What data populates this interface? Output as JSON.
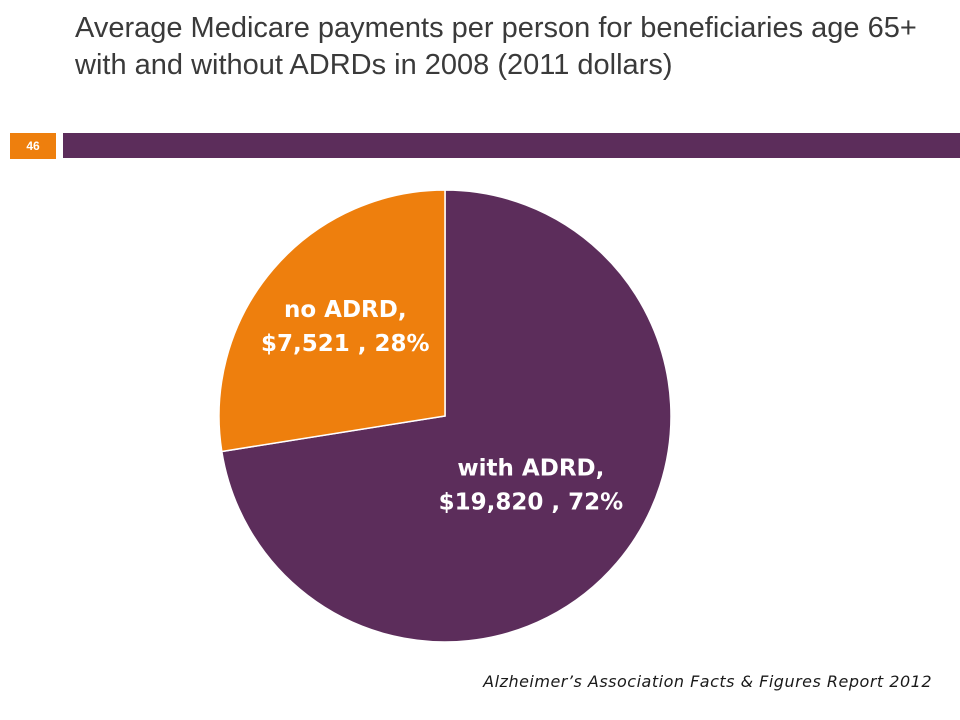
{
  "slide": {
    "title": "Average Medicare payments per person for beneficiaries age 65+ with and without ADRDs in 2008 (2011 dollars)",
    "page_number": "46",
    "source": "Alzheimer’s Association Facts & Figures Report 2012"
  },
  "colors": {
    "accent_purple": "#5c2d5b",
    "accent_orange": "#ee7f0d",
    "title_text": "#3a3a3a"
  },
  "chart_data": {
    "type": "pie",
    "slices": [
      {
        "name": "with ADRD",
        "value": 19820,
        "percent": 72,
        "value_label": "$19,820 , 72%",
        "color": "#5c2d5b"
      },
      {
        "name": "no ADRD",
        "value": 7521,
        "percent": 28,
        "value_label": "$7,521 , 28%",
        "color": "#ee7f0d"
      }
    ],
    "start_angle_deg": 0,
    "direction": "clockwise",
    "legend": "none"
  }
}
